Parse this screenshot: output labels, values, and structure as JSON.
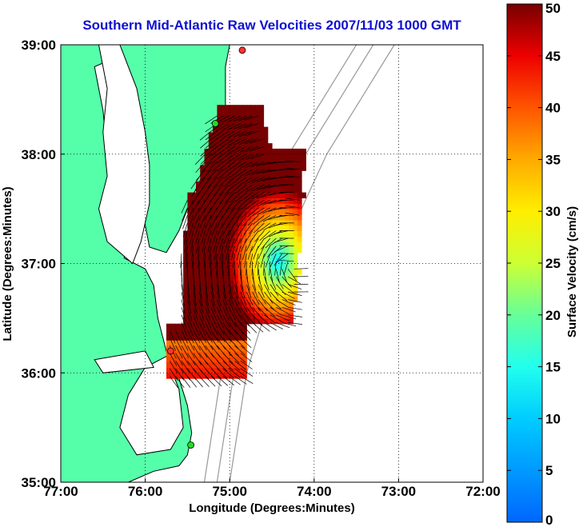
{
  "title": "Southern Mid-Atlantic Raw Velocities 2007/11/03 1000 GMT",
  "chart_data": {
    "type": "heatmap",
    "title": "Southern Mid-Atlantic Raw Velocities 2007/11/03 1000 GMT",
    "xlabel": "Longitude (Degrees:Minutes)",
    "ylabel": "Latitude (Degrees:Minutes)",
    "colorbar_label": "Surface Velocity (cm/s)",
    "x_ticks": [
      "77:00",
      "76:00",
      "75:00",
      "74:00",
      "73:00",
      "72:00"
    ],
    "y_ticks": [
      "39:00",
      "38:00",
      "37:00",
      "36:00",
      "35:00"
    ],
    "xlim": [
      -77,
      -72
    ],
    "ylim": [
      35,
      39
    ],
    "colorbar_ticks": [
      0,
      5,
      10,
      15,
      20,
      25,
      30,
      35,
      40,
      45,
      50
    ],
    "colorbar_range": [
      0,
      50
    ],
    "grid": true,
    "colors": {
      "land": "#55ffaa",
      "coast": "#000000",
      "bathymetry": "#999999",
      "vectors": "#000000",
      "stations": "#22dd22",
      "title": "#1010d0"
    }
  }
}
